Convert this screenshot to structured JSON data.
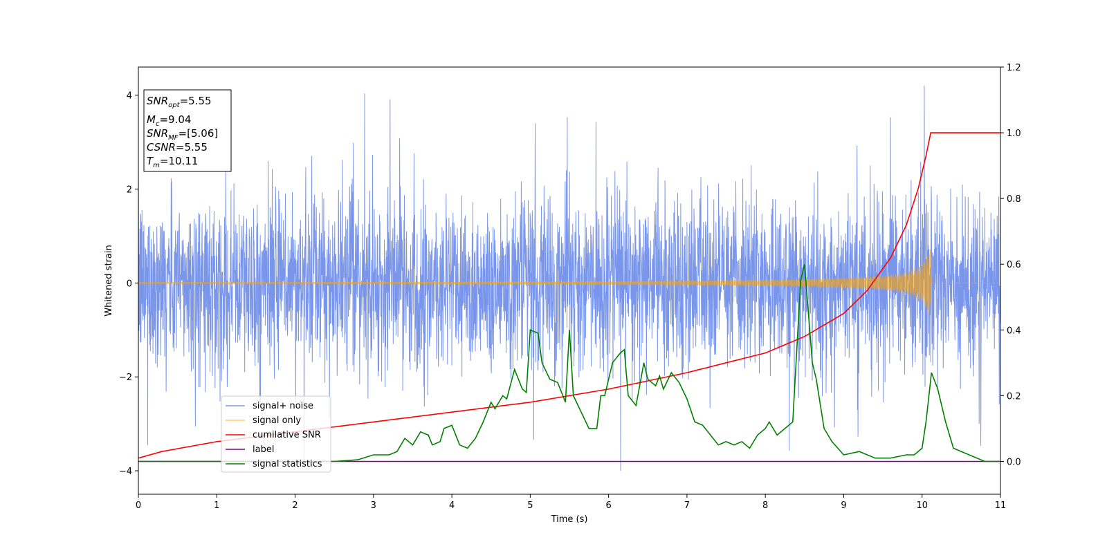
{
  "chart_data": {
    "type": "line",
    "xlabel": "Time (s)",
    "ylabel": "Whitened strain",
    "xlim": [
      0,
      11
    ],
    "ylim": [
      -4.5,
      4.6
    ],
    "y2lim": [
      -0.1,
      1.2
    ],
    "x_ticks": [
      "0",
      "1",
      "2",
      "3",
      "4",
      "5",
      "6",
      "7",
      "8",
      "9",
      "10",
      "11"
    ],
    "y_ticks": [
      "4",
      "2",
      "0",
      "−2",
      "−4"
    ],
    "y2_ticks": [
      "1.2",
      "1.0",
      "0.8",
      "0.6",
      "0.4",
      "0.2",
      "0.0"
    ],
    "grid": false,
    "legend_position": "lower-left",
    "info_box": {
      "snr_opt": {
        "sym": "SNR",
        "sub": "opt",
        "val": "=5.55"
      },
      "mc": {
        "sym": "M",
        "sub": "c",
        "val": "=9.04"
      },
      "snr_mf": {
        "sym": "SNR",
        "sub": "MF",
        "val": "=[5.06]"
      },
      "csnr": {
        "sym": "CSNR",
        "val": "=5.55"
      },
      "tm": {
        "sym": "T",
        "sub": "m",
        "val": "=10.11"
      }
    },
    "series": [
      {
        "name": "signal+ noise",
        "color": "#4169e1",
        "axis": "left",
        "envelope_sd": 0.9,
        "range": [
          -4.0,
          4.2
        ]
      },
      {
        "name": "signal only",
        "color": "#ffa500",
        "axis": "left",
        "x": [
          0,
          2,
          4,
          6,
          7,
          8,
          8.5,
          9,
          9.5,
          9.8,
          10.0,
          10.08,
          10.11,
          10.12,
          11
        ],
        "amplitude": [
          0.02,
          0.02,
          0.03,
          0.04,
          0.05,
          0.07,
          0.08,
          0.11,
          0.15,
          0.22,
          0.38,
          0.65,
          0.75,
          0.0,
          0.0
        ]
      },
      {
        "name": "cumilative SNR",
        "color": "#ff0000",
        "axis": "right",
        "x": [
          0,
          0.3,
          1,
          2,
          3,
          4,
          5,
          6,
          7,
          7.5,
          8,
          8.5,
          9,
          9.3,
          9.6,
          9.8,
          9.95,
          10.05,
          10.11,
          11
        ],
        "y": [
          0.01,
          0.03,
          0.06,
          0.09,
          0.12,
          0.15,
          0.18,
          0.22,
          0.27,
          0.3,
          0.33,
          0.38,
          0.45,
          0.52,
          0.62,
          0.72,
          0.83,
          0.93,
          1.0,
          1.0
        ]
      },
      {
        "name": "label",
        "color": "#800080",
        "axis": "right",
        "x": [
          0,
          11
        ],
        "y": [
          0,
          0
        ]
      },
      {
        "name": "signal statistics",
        "color": "#008000",
        "axis": "right",
        "x": [
          0,
          0.5,
          1,
          1.5,
          2,
          2.5,
          2.8,
          3.0,
          3.2,
          3.3,
          3.4,
          3.5,
          3.6,
          3.7,
          3.75,
          3.85,
          3.9,
          4.0,
          4.1,
          4.2,
          4.3,
          4.4,
          4.5,
          4.55,
          4.65,
          4.7,
          4.8,
          4.9,
          4.95,
          5.0,
          5.1,
          5.15,
          5.25,
          5.35,
          5.45,
          5.5,
          5.55,
          5.65,
          5.75,
          5.85,
          5.9,
          5.95,
          6.05,
          6.15,
          6.2,
          6.25,
          6.35,
          6.45,
          6.5,
          6.6,
          6.65,
          6.7,
          6.8,
          6.9,
          7.0,
          7.1,
          7.2,
          7.3,
          7.4,
          7.5,
          7.6,
          7.7,
          7.8,
          7.9,
          8.0,
          8.05,
          8.15,
          8.25,
          8.35,
          8.45,
          8.5,
          8.6,
          8.65,
          8.75,
          8.85,
          9.0,
          9.2,
          9.4,
          9.6,
          9.8,
          9.9,
          10.0,
          10.05,
          10.12,
          10.2,
          10.3,
          10.4,
          10.6,
          10.8,
          11.0
        ],
        "y": [
          0.0,
          0.0,
          0.0,
          0.0,
          0.0,
          0.0,
          0.005,
          0.02,
          0.02,
          0.03,
          0.07,
          0.05,
          0.09,
          0.08,
          0.05,
          0.06,
          0.1,
          0.11,
          0.05,
          0.04,
          0.07,
          0.12,
          0.18,
          0.16,
          0.2,
          0.19,
          0.28,
          0.22,
          0.21,
          0.4,
          0.39,
          0.3,
          0.25,
          0.24,
          0.18,
          0.4,
          0.2,
          0.15,
          0.1,
          0.1,
          0.2,
          0.2,
          0.3,
          0.33,
          0.34,
          0.2,
          0.17,
          0.3,
          0.25,
          0.23,
          0.26,
          0.22,
          0.27,
          0.24,
          0.19,
          0.12,
          0.11,
          0.08,
          0.05,
          0.06,
          0.05,
          0.06,
          0.04,
          0.08,
          0.1,
          0.12,
          0.08,
          0.1,
          0.12,
          0.55,
          0.6,
          0.3,
          0.25,
          0.1,
          0.06,
          0.02,
          0.03,
          0.01,
          0.01,
          0.02,
          0.02,
          0.04,
          0.12,
          0.27,
          0.22,
          0.12,
          0.04,
          0.02,
          0.0,
          0.0
        ]
      }
    ]
  }
}
